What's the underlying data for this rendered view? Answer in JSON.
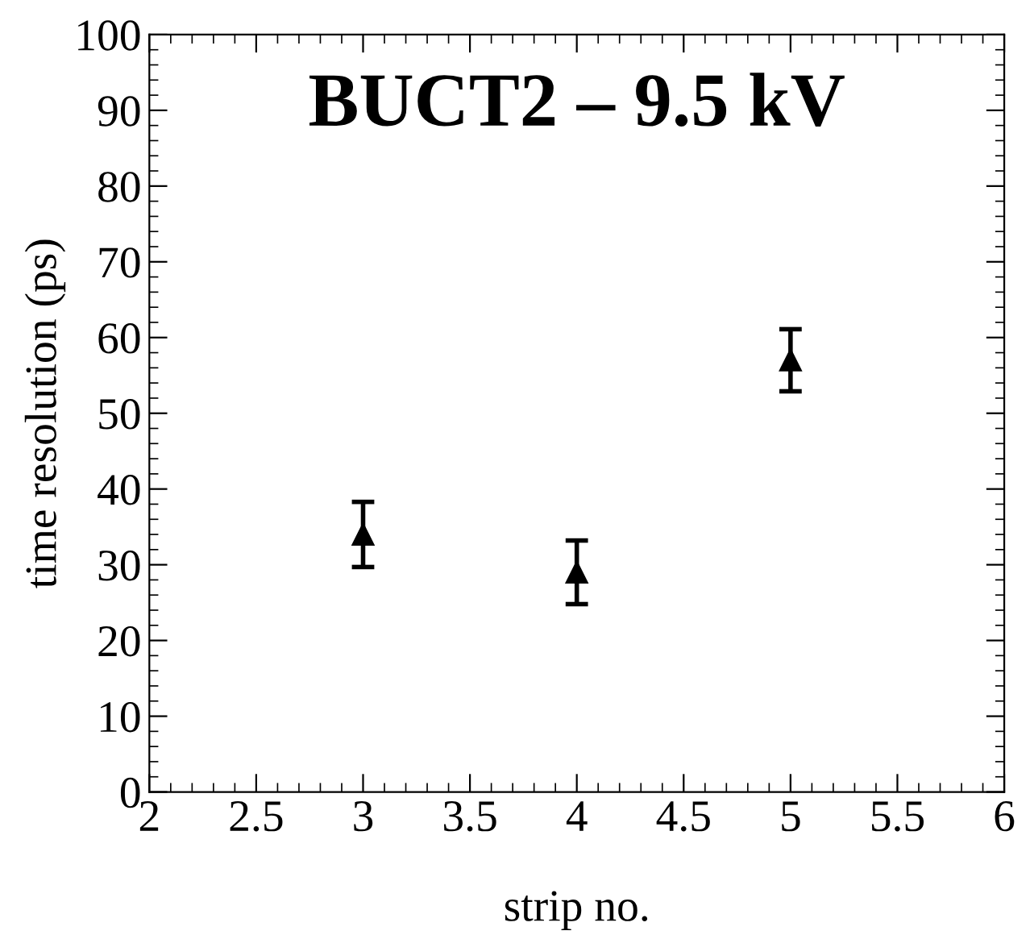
{
  "chart_data": {
    "type": "scatter",
    "title": "BUCT2 – 9.5 kV",
    "xlabel": "strip no.",
    "ylabel": "time resolution (ps)",
    "x": [
      3,
      4,
      5
    ],
    "values": [
      34,
      29,
      57
    ],
    "errors": [
      4.3,
      4.2,
      4.1
    ],
    "color": "#000000",
    "marker": "triangle",
    "xlim": [
      2,
      6
    ],
    "xticks": [
      2,
      2.5,
      3,
      3.5,
      4,
      4.5,
      5,
      5.5,
      6
    ],
    "ylim": [
      0,
      100
    ],
    "yticks": [
      0,
      10,
      20,
      30,
      40,
      50,
      60,
      70,
      80,
      90,
      100
    ],
    "grid": false
  }
}
